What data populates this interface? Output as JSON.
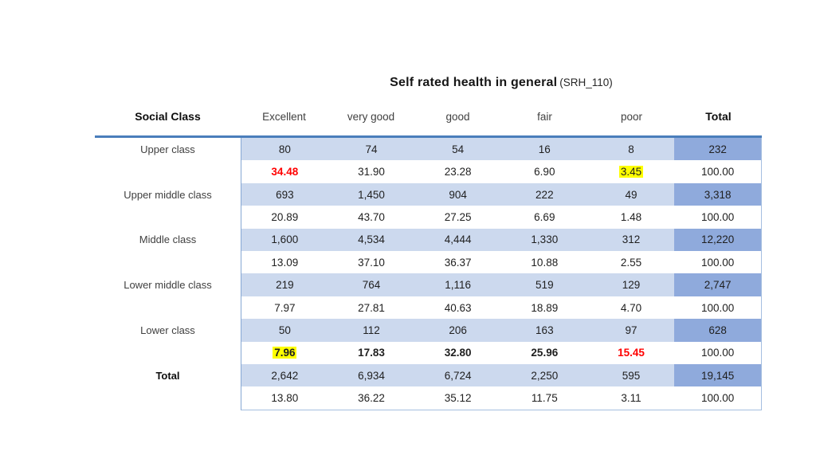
{
  "title": {
    "main": "Self rated health in general",
    "suffix": "(SRH_110)"
  },
  "colors": {
    "accent": "#4a7ebb",
    "band": "#ccd9ee",
    "total-cell": "#8faadc",
    "border": "#a5bfe0",
    "border-dark": "#86a7d3",
    "highlight": "#ffff00",
    "negative": "#ff0000"
  },
  "table": {
    "corner_label": "Social Class",
    "columns": [
      "Excellent",
      "very good",
      "good",
      "fair",
      "poor",
      "Total"
    ],
    "groups": [
      {
        "label": "Upper class",
        "counts": [
          "80",
          "74",
          "54",
          "16",
          "8",
          "232"
        ],
        "pcts": [
          "34.48",
          "31.90",
          "23.28",
          "6.90",
          "3.45",
          "100.00"
        ],
        "pct_styles": [
          "red",
          "",
          "",
          "",
          "yellow",
          ""
        ]
      },
      {
        "label": "Upper middle class",
        "counts": [
          "693",
          "1,450",
          "904",
          "222",
          "49",
          "3,318"
        ],
        "pcts": [
          "20.89",
          "43.70",
          "27.25",
          "6.69",
          "1.48",
          "100.00"
        ]
      },
      {
        "label": "Middle class",
        "counts": [
          "1,600",
          "4,534",
          "4,444",
          "1,330",
          "312",
          "12,220"
        ],
        "pcts": [
          "13.09",
          "37.10",
          "36.37",
          "10.88",
          "2.55",
          "100.00"
        ]
      },
      {
        "label": "Lower middle class",
        "counts": [
          "219",
          "764",
          "1,116",
          "519",
          "129",
          "2,747"
        ],
        "pcts": [
          "7.97",
          "27.81",
          "40.63",
          "18.89",
          "4.70",
          "100.00"
        ]
      },
      {
        "label": "Lower class",
        "counts": [
          "50",
          "112",
          "206",
          "163",
          "97",
          "628"
        ],
        "pcts": [
          "7.96",
          "17.83",
          "32.80",
          "25.96",
          "15.45",
          "100.00"
        ],
        "pct_styles": [
          "yellow bold",
          "bold",
          "bold",
          "bold",
          "red",
          ""
        ]
      },
      {
        "label": "Total",
        "label_bold": true,
        "counts": [
          "2,642",
          "6,934",
          "6,724",
          "2,250",
          "595",
          "19,145"
        ],
        "pcts": [
          "13.80",
          "36.22",
          "35.12",
          "11.75",
          "3.11",
          "100.00"
        ]
      }
    ]
  }
}
